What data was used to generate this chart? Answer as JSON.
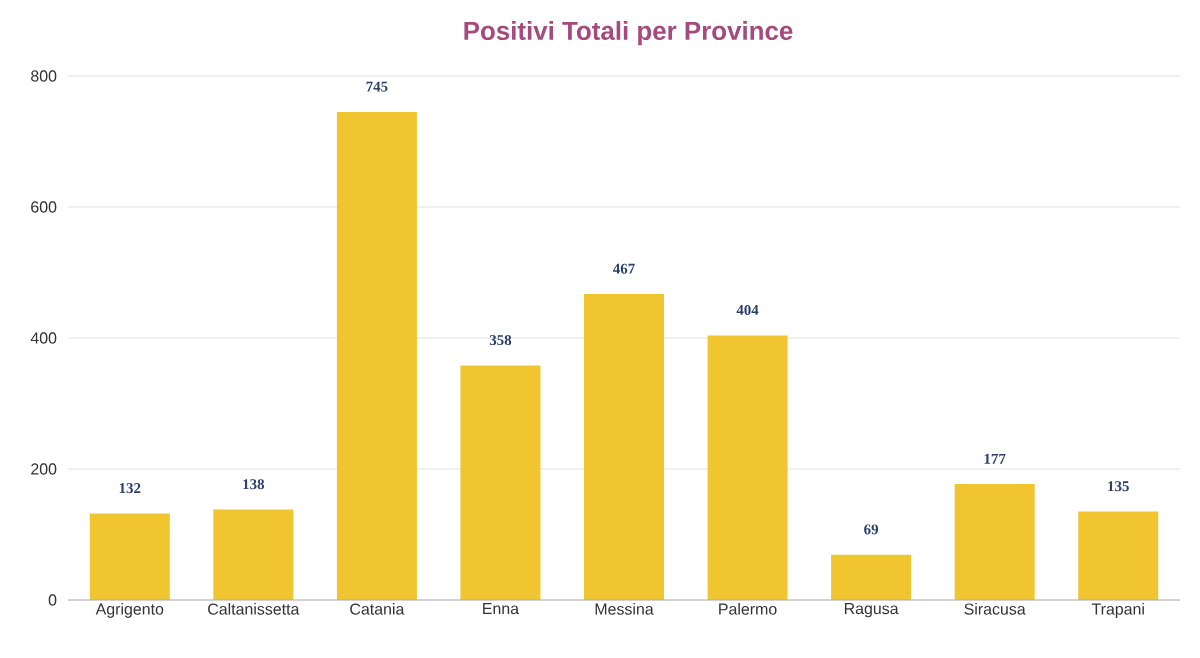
{
  "chart_data": {
    "type": "bar",
    "title": "Positivi Totali per Province",
    "categories": [
      "Agrigento",
      "Caltanissetta",
      "Catania",
      "Enna",
      "Messina",
      "Palermo",
      "Ragusa",
      "Siracusa",
      "Trapani"
    ],
    "values": [
      132,
      138,
      745,
      358,
      467,
      404,
      69,
      177,
      135
    ],
    "color": "#f0c530",
    "ylim": [
      0,
      800
    ],
    "yticks": [
      0,
      200,
      400,
      600,
      800
    ],
    "grid": "y",
    "data_labels": true
  }
}
